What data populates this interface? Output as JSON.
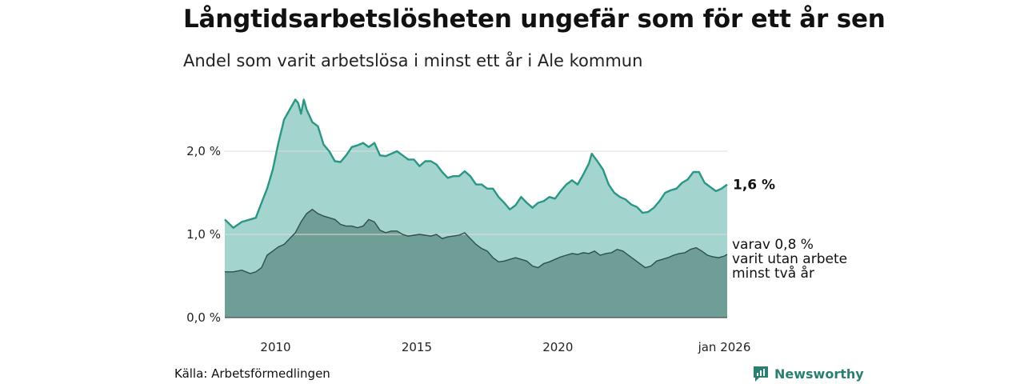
{
  "title": "Långtidsarbetslösheten ungefär som för ett år sen",
  "subtitle": "Andel som varit arbetslösa i minst ett år i Ale kommun",
  "source": "Källa: Arbetsförmedlingen",
  "brand": "Newsworthy",
  "colors": {
    "total_line": "#2a9683",
    "total_fill": "#a3d5ce",
    "long_fill": "#6f9e96",
    "long_line": "#2f4f4a",
    "grid": "#dddddd",
    "brand": "#2a7f72"
  },
  "chart_data": {
    "type": "area",
    "x_range": [
      2008.2,
      2026.0
    ],
    "ylim": [
      0,
      2.7
    ],
    "yticks": [
      {
        "value": 0,
        "label": "0,0 %"
      },
      {
        "value": 1,
        "label": "1,0 %"
      },
      {
        "value": 2,
        "label": "2,0 %"
      }
    ],
    "xticks": [
      {
        "value": 2010,
        "label": "2010"
      },
      {
        "value": 2015,
        "label": "2015"
      },
      {
        "value": 2020,
        "label": "2020"
      },
      {
        "value": 2025.9,
        "label": "jan 2026"
      }
    ],
    "series": [
      {
        "name": "Minst ett år",
        "end_label": "1,6 %",
        "points": [
          [
            2008.2,
            1.18
          ],
          [
            2008.5,
            1.08
          ],
          [
            2008.8,
            1.15
          ],
          [
            2009.1,
            1.18
          ],
          [
            2009.3,
            1.2
          ],
          [
            2009.5,
            1.38
          ],
          [
            2009.7,
            1.55
          ],
          [
            2009.9,
            1.78
          ],
          [
            2010.1,
            2.1
          ],
          [
            2010.3,
            2.38
          ],
          [
            2010.5,
            2.5
          ],
          [
            2010.7,
            2.62
          ],
          [
            2010.8,
            2.58
          ],
          [
            2010.9,
            2.45
          ],
          [
            2011.0,
            2.62
          ],
          [
            2011.1,
            2.5
          ],
          [
            2011.3,
            2.35
          ],
          [
            2011.5,
            2.3
          ],
          [
            2011.7,
            2.08
          ],
          [
            2011.9,
            2.0
          ],
          [
            2012.1,
            1.88
          ],
          [
            2012.3,
            1.87
          ],
          [
            2012.5,
            1.95
          ],
          [
            2012.7,
            2.05
          ],
          [
            2012.9,
            2.07
          ],
          [
            2013.1,
            2.1
          ],
          [
            2013.3,
            2.05
          ],
          [
            2013.5,
            2.1
          ],
          [
            2013.7,
            1.95
          ],
          [
            2013.9,
            1.94
          ],
          [
            2014.1,
            1.97
          ],
          [
            2014.3,
            2.0
          ],
          [
            2014.5,
            1.95
          ],
          [
            2014.7,
            1.9
          ],
          [
            2014.9,
            1.9
          ],
          [
            2015.1,
            1.82
          ],
          [
            2015.3,
            1.88
          ],
          [
            2015.5,
            1.88
          ],
          [
            2015.7,
            1.84
          ],
          [
            2015.9,
            1.75
          ],
          [
            2016.1,
            1.68
          ],
          [
            2016.3,
            1.7
          ],
          [
            2016.5,
            1.7
          ],
          [
            2016.7,
            1.76
          ],
          [
            2016.9,
            1.7
          ],
          [
            2017.1,
            1.6
          ],
          [
            2017.3,
            1.6
          ],
          [
            2017.5,
            1.55
          ],
          [
            2017.7,
            1.55
          ],
          [
            2017.9,
            1.45
          ],
          [
            2018.1,
            1.38
          ],
          [
            2018.3,
            1.3
          ],
          [
            2018.5,
            1.35
          ],
          [
            2018.7,
            1.45
          ],
          [
            2018.9,
            1.38
          ],
          [
            2019.1,
            1.32
          ],
          [
            2019.3,
            1.38
          ],
          [
            2019.5,
            1.4
          ],
          [
            2019.7,
            1.45
          ],
          [
            2019.9,
            1.43
          ],
          [
            2020.1,
            1.52
          ],
          [
            2020.3,
            1.6
          ],
          [
            2020.5,
            1.65
          ],
          [
            2020.7,
            1.6
          ],
          [
            2020.9,
            1.72
          ],
          [
            2021.1,
            1.85
          ],
          [
            2021.2,
            1.97
          ],
          [
            2021.4,
            1.88
          ],
          [
            2021.6,
            1.78
          ],
          [
            2021.8,
            1.6
          ],
          [
            2022.0,
            1.5
          ],
          [
            2022.2,
            1.45
          ],
          [
            2022.4,
            1.42
          ],
          [
            2022.6,
            1.36
          ],
          [
            2022.8,
            1.33
          ],
          [
            2023.0,
            1.26
          ],
          [
            2023.2,
            1.27
          ],
          [
            2023.4,
            1.32
          ],
          [
            2023.6,
            1.4
          ],
          [
            2023.8,
            1.5
          ],
          [
            2024.0,
            1.53
          ],
          [
            2024.2,
            1.55
          ],
          [
            2024.4,
            1.62
          ],
          [
            2024.6,
            1.66
          ],
          [
            2024.8,
            1.75
          ],
          [
            2025.0,
            1.75
          ],
          [
            2025.2,
            1.62
          ],
          [
            2025.4,
            1.57
          ],
          [
            2025.6,
            1.52
          ],
          [
            2025.8,
            1.55
          ],
          [
            2026.0,
            1.6
          ]
        ]
      },
      {
        "name": "Minst två år",
        "end_label_lines": [
          "varav 0,8 %",
          "varit utan arbete",
          "minst två år"
        ],
        "points": [
          [
            2008.2,
            0.55
          ],
          [
            2008.5,
            0.55
          ],
          [
            2008.8,
            0.57
          ],
          [
            2009.1,
            0.53
          ],
          [
            2009.3,
            0.55
          ],
          [
            2009.5,
            0.6
          ],
          [
            2009.7,
            0.75
          ],
          [
            2009.9,
            0.8
          ],
          [
            2010.1,
            0.85
          ],
          [
            2010.3,
            0.88
          ],
          [
            2010.5,
            0.95
          ],
          [
            2010.7,
            1.02
          ],
          [
            2010.9,
            1.15
          ],
          [
            2011.1,
            1.25
          ],
          [
            2011.3,
            1.3
          ],
          [
            2011.5,
            1.25
          ],
          [
            2011.7,
            1.22
          ],
          [
            2011.9,
            1.2
          ],
          [
            2012.1,
            1.18
          ],
          [
            2012.3,
            1.12
          ],
          [
            2012.5,
            1.1
          ],
          [
            2012.7,
            1.1
          ],
          [
            2012.9,
            1.08
          ],
          [
            2013.1,
            1.1
          ],
          [
            2013.3,
            1.18
          ],
          [
            2013.5,
            1.15
          ],
          [
            2013.7,
            1.05
          ],
          [
            2013.9,
            1.02
          ],
          [
            2014.1,
            1.04
          ],
          [
            2014.3,
            1.04
          ],
          [
            2014.5,
            1.0
          ],
          [
            2014.7,
            0.98
          ],
          [
            2014.9,
            0.99
          ],
          [
            2015.1,
            1.0
          ],
          [
            2015.3,
            0.99
          ],
          [
            2015.5,
            0.98
          ],
          [
            2015.7,
            1.0
          ],
          [
            2015.9,
            0.95
          ],
          [
            2016.1,
            0.97
          ],
          [
            2016.3,
            0.98
          ],
          [
            2016.5,
            0.99
          ],
          [
            2016.7,
            1.02
          ],
          [
            2016.9,
            0.95
          ],
          [
            2017.1,
            0.88
          ],
          [
            2017.3,
            0.83
          ],
          [
            2017.5,
            0.8
          ],
          [
            2017.7,
            0.72
          ],
          [
            2017.9,
            0.67
          ],
          [
            2018.1,
            0.68
          ],
          [
            2018.3,
            0.7
          ],
          [
            2018.5,
            0.72
          ],
          [
            2018.7,
            0.7
          ],
          [
            2018.9,
            0.68
          ],
          [
            2019.1,
            0.62
          ],
          [
            2019.3,
            0.6
          ],
          [
            2019.5,
            0.65
          ],
          [
            2019.7,
            0.67
          ],
          [
            2019.9,
            0.7
          ],
          [
            2020.1,
            0.73
          ],
          [
            2020.3,
            0.75
          ],
          [
            2020.5,
            0.77
          ],
          [
            2020.7,
            0.76
          ],
          [
            2020.9,
            0.78
          ],
          [
            2021.1,
            0.77
          ],
          [
            2021.3,
            0.8
          ],
          [
            2021.5,
            0.75
          ],
          [
            2021.7,
            0.77
          ],
          [
            2021.9,
            0.78
          ],
          [
            2022.1,
            0.82
          ],
          [
            2022.3,
            0.8
          ],
          [
            2022.5,
            0.75
          ],
          [
            2022.7,
            0.7
          ],
          [
            2022.9,
            0.65
          ],
          [
            2023.1,
            0.6
          ],
          [
            2023.3,
            0.62
          ],
          [
            2023.5,
            0.68
          ],
          [
            2023.7,
            0.7
          ],
          [
            2023.9,
            0.72
          ],
          [
            2024.1,
            0.75
          ],
          [
            2024.3,
            0.77
          ],
          [
            2024.5,
            0.78
          ],
          [
            2024.7,
            0.82
          ],
          [
            2024.9,
            0.84
          ],
          [
            2025.1,
            0.8
          ],
          [
            2025.3,
            0.75
          ],
          [
            2025.5,
            0.73
          ],
          [
            2025.7,
            0.72
          ],
          [
            2025.9,
            0.74
          ],
          [
            2026.0,
            0.76
          ]
        ]
      }
    ]
  }
}
